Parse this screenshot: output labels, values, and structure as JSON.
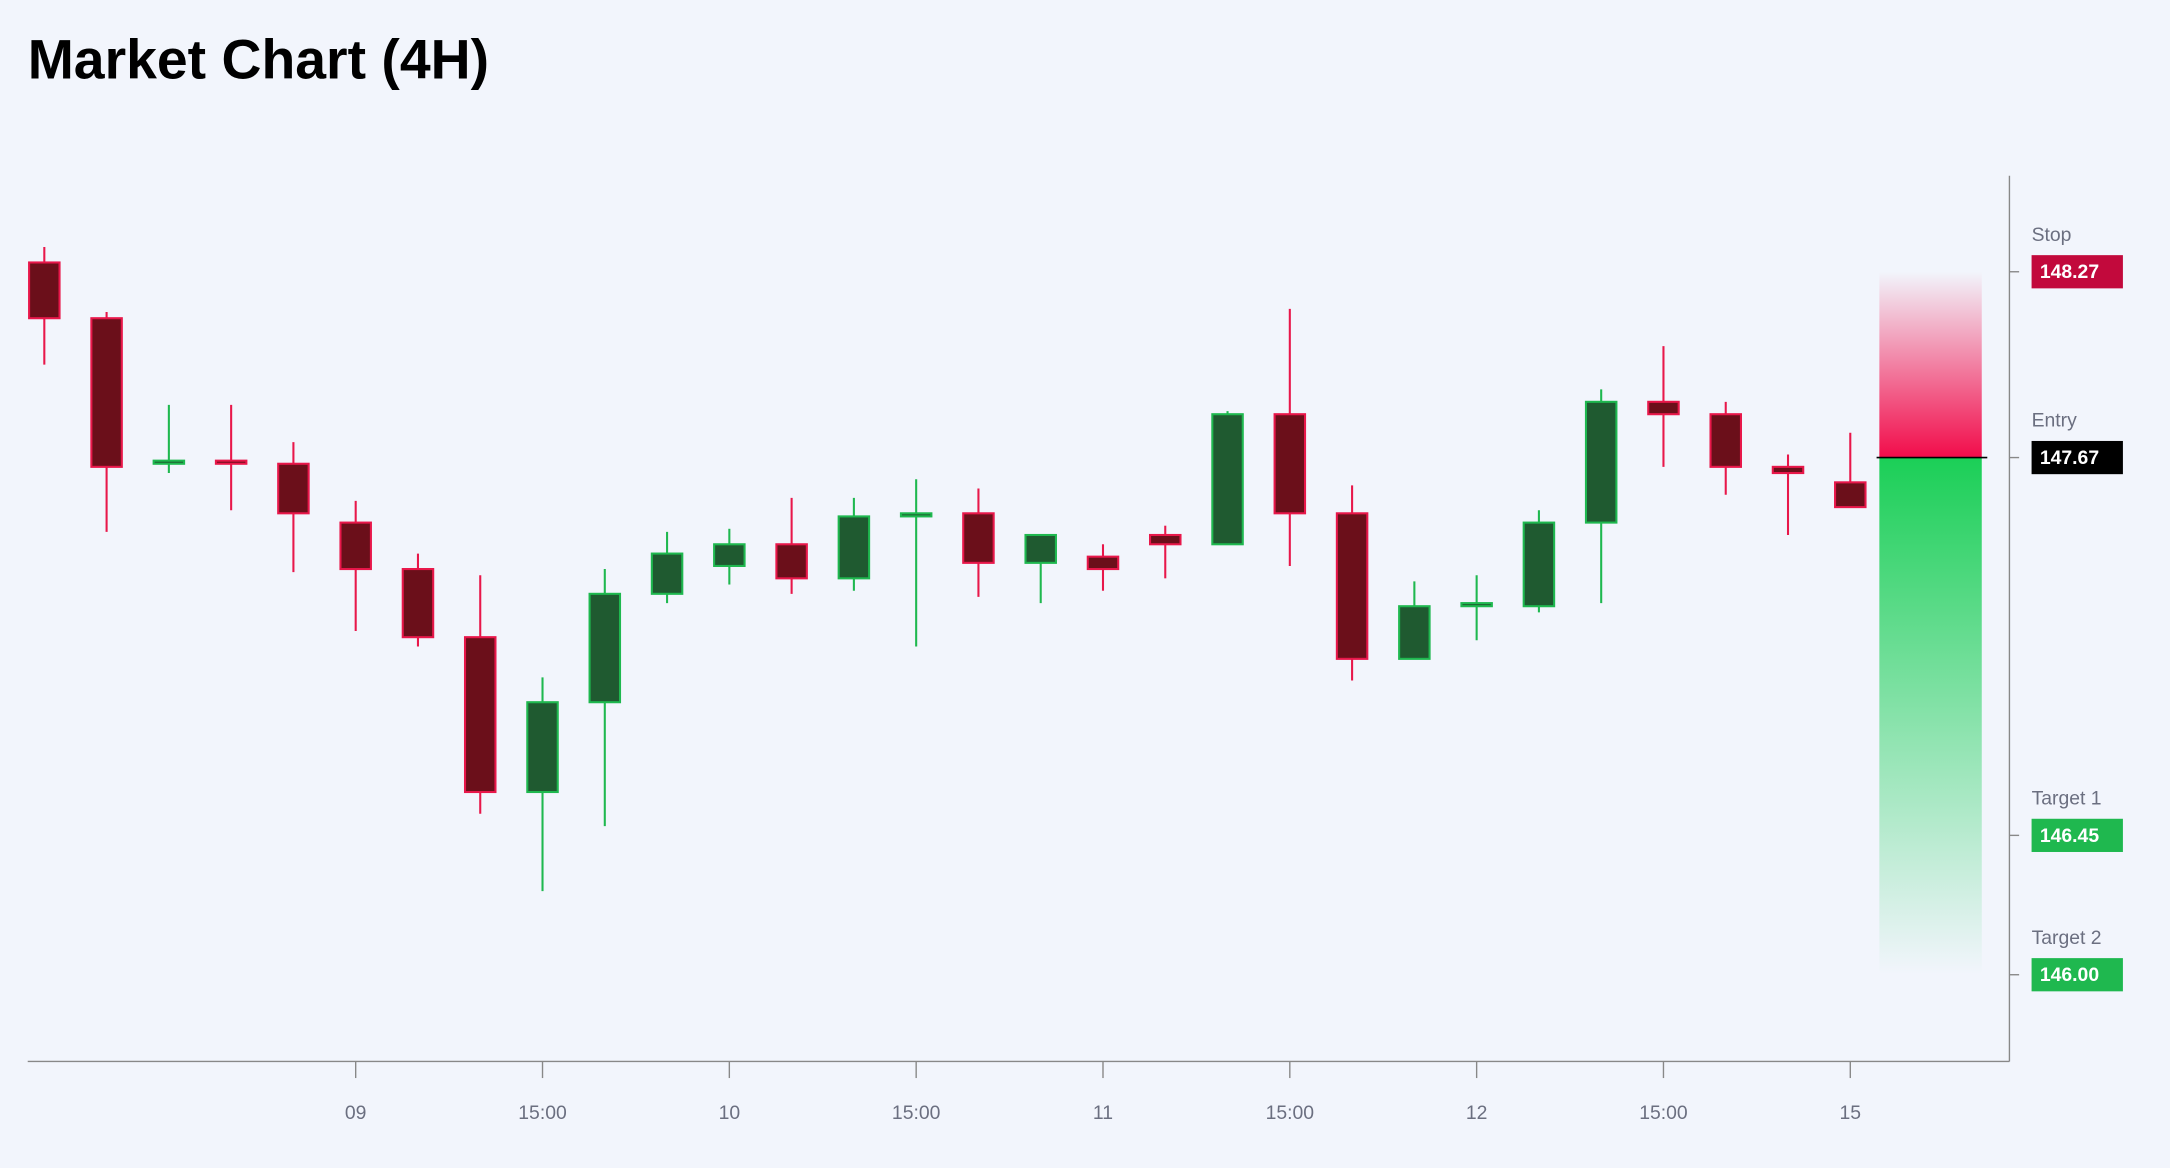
{
  "chart_data": {
    "type": "candlestick",
    "title": "Market Chart (4H)",
    "categories": [
      null,
      null,
      null,
      null,
      null,
      "09",
      null,
      null,
      "15:00",
      null,
      null,
      "10",
      null,
      null,
      "15:00",
      null,
      null,
      "11",
      null,
      null,
      "15:00",
      null,
      null,
      "12",
      null,
      null,
      "15:00",
      null,
      null,
      "15"
    ],
    "open": [
      148.3,
      148.12,
      147.65,
      147.66,
      147.65,
      147.46,
      147.31,
      147.09,
      146.59,
      146.88,
      147.23,
      147.32,
      147.39,
      147.28,
      147.48,
      147.49,
      147.33,
      147.35,
      147.42,
      147.39,
      147.81,
      147.49,
      147.02,
      147.19,
      147.19,
      147.46,
      147.85,
      147.81,
      147.64,
      147.59
    ],
    "high": [
      148.35,
      148.14,
      147.84,
      147.84,
      147.72,
      147.53,
      147.36,
      147.29,
      146.96,
      147.31,
      147.43,
      147.44,
      147.54,
      147.54,
      147.6,
      147.57,
      147.42,
      147.39,
      147.45,
      147.82,
      148.15,
      147.58,
      147.27,
      147.29,
      147.5,
      147.89,
      148.03,
      147.85,
      147.68,
      147.75
    ],
    "low": [
      147.97,
      147.43,
      147.62,
      147.5,
      147.3,
      147.11,
      147.06,
      146.52,
      146.27,
      146.48,
      147.2,
      147.26,
      147.23,
      147.24,
      147.06,
      147.22,
      147.2,
      147.24,
      147.28,
      147.39,
      147.32,
      146.95,
      147.02,
      147.08,
      147.17,
      147.2,
      147.64,
      147.55,
      147.42,
      147.51
    ],
    "close": [
      148.12,
      147.64,
      147.66,
      147.65,
      147.49,
      147.31,
      147.09,
      146.59,
      146.88,
      147.23,
      147.36,
      147.39,
      147.28,
      147.48,
      147.49,
      147.33,
      147.42,
      147.31,
      147.39,
      147.81,
      147.49,
      147.02,
      147.19,
      147.2,
      147.46,
      147.85,
      147.81,
      147.64,
      147.62,
      147.51
    ],
    "up_color": "#1fb84f",
    "down_color": "#e8174a",
    "ylim": [
      145.72,
      148.58
    ],
    "levels": [
      {
        "name": "Stop",
        "value": 148.27,
        "label": "148.27",
        "color": "#c2093c"
      },
      {
        "name": "Entry",
        "value": 147.67,
        "label": "147.67",
        "color": "#000000"
      },
      {
        "name": "Target 1",
        "value": 146.45,
        "label": "146.45",
        "color": "#1fb84f"
      },
      {
        "name": "Target 2",
        "value": 146.0,
        "label": "146.00",
        "color": "#1fb84f"
      }
    ]
  }
}
